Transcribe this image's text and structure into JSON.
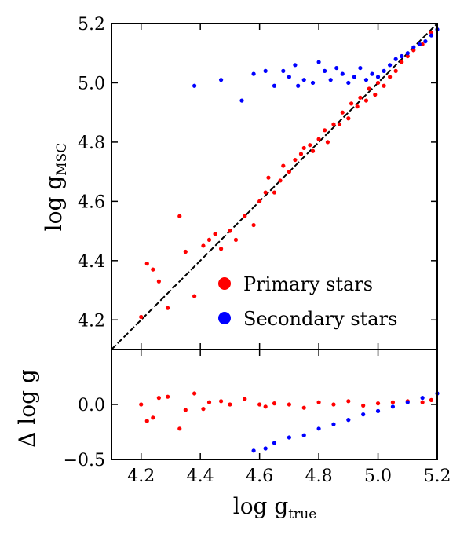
{
  "chart_data": [
    {
      "panel": "top",
      "type": "scatter",
      "xlabel": "",
      "ylabel": {
        "base": "log g",
        "subscript": "MSC"
      },
      "xlim": [
        4.1,
        5.2
      ],
      "ylim": [
        4.1,
        5.2
      ],
      "y_ticks": [
        "4.2",
        "4.4",
        "4.6",
        "4.8",
        "5.0",
        "5.2"
      ],
      "reference_line": {
        "style": "dashed",
        "color": "#000000",
        "description": "one-to-one line",
        "from": [
          4.1,
          4.1
        ],
        "to": [
          5.2,
          5.2
        ]
      },
      "legend": {
        "position": "lower-right",
        "entries": [
          {
            "label": "Primary stars",
            "color": "#ff0000"
          },
          {
            "label": "Secondary stars",
            "color": "#0000ff"
          }
        ]
      },
      "series": [
        {
          "name": "Primary stars",
          "color": "#ff0000",
          "points": [
            [
              4.2,
              4.21
            ],
            [
              4.22,
              4.39
            ],
            [
              4.24,
              4.37
            ],
            [
              4.26,
              4.33
            ],
            [
              4.29,
              4.24
            ],
            [
              4.33,
              4.55
            ],
            [
              4.35,
              4.43
            ],
            [
              4.38,
              4.28
            ],
            [
              4.41,
              4.45
            ],
            [
              4.43,
              4.47
            ],
            [
              4.45,
              4.49
            ],
            [
              4.47,
              4.44
            ],
            [
              4.5,
              4.5
            ],
            [
              4.52,
              4.47
            ],
            [
              4.55,
              4.55
            ],
            [
              4.58,
              4.52
            ],
            [
              4.6,
              4.6
            ],
            [
              4.62,
              4.63
            ],
            [
              4.63,
              4.68
            ],
            [
              4.65,
              4.63
            ],
            [
              4.67,
              4.67
            ],
            [
              4.68,
              4.72
            ],
            [
              4.7,
              4.7
            ],
            [
              4.72,
              4.74
            ],
            [
              4.74,
              4.76
            ],
            [
              4.75,
              4.78
            ],
            [
              4.77,
              4.79
            ],
            [
              4.78,
              4.77
            ],
            [
              4.8,
              4.81
            ],
            [
              4.82,
              4.84
            ],
            [
              4.83,
              4.8
            ],
            [
              4.85,
              4.86
            ],
            [
              4.87,
              4.86
            ],
            [
              4.88,
              4.9
            ],
            [
              4.9,
              4.88
            ],
            [
              4.91,
              4.93
            ],
            [
              4.93,
              4.92
            ],
            [
              4.94,
              4.95
            ],
            [
              4.96,
              4.94
            ],
            [
              4.97,
              4.98
            ],
            [
              4.99,
              4.96
            ],
            [
              5.0,
              5.0
            ],
            [
              5.02,
              4.99
            ],
            [
              5.04,
              5.02
            ],
            [
              5.06,
              5.04
            ],
            [
              5.08,
              5.07
            ],
            [
              5.1,
              5.09
            ],
            [
              5.12,
              5.11
            ],
            [
              5.15,
              5.13
            ],
            [
              5.18,
              5.17
            ]
          ]
        },
        {
          "name": "Secondary stars",
          "color": "#0000ff",
          "points": [
            [
              4.38,
              4.99
            ],
            [
              4.47,
              5.01
            ],
            [
              4.54,
              4.94
            ],
            [
              4.58,
              5.03
            ],
            [
              4.62,
              5.04
            ],
            [
              4.65,
              4.99
            ],
            [
              4.68,
              5.04
            ],
            [
              4.7,
              5.02
            ],
            [
              4.72,
              5.06
            ],
            [
              4.73,
              4.99
            ],
            [
              4.75,
              5.01
            ],
            [
              4.78,
              5.0
            ],
            [
              4.8,
              5.07
            ],
            [
              4.82,
              5.04
            ],
            [
              4.84,
              5.01
            ],
            [
              4.86,
              5.05
            ],
            [
              4.88,
              5.03
            ],
            [
              4.9,
              5.0
            ],
            [
              4.92,
              5.02
            ],
            [
              4.94,
              5.05
            ],
            [
              4.96,
              5.01
            ],
            [
              4.98,
              5.03
            ],
            [
              5.0,
              5.02
            ],
            [
              5.02,
              5.04
            ],
            [
              5.04,
              5.06
            ],
            [
              5.06,
              5.08
            ],
            [
              5.08,
              5.09
            ],
            [
              5.1,
              5.1
            ],
            [
              5.12,
              5.12
            ],
            [
              5.14,
              5.13
            ],
            [
              5.16,
              5.14
            ],
            [
              5.18,
              5.16
            ],
            [
              5.2,
              5.18
            ]
          ]
        }
      ]
    },
    {
      "panel": "bottom",
      "type": "scatter",
      "xlabel": {
        "base": "log g",
        "subscript": "true"
      },
      "ylabel": {
        "base": "Δ log g",
        "subscript": ""
      },
      "xlim": [
        4.1,
        5.2
      ],
      "ylim": [
        -0.5,
        0.5
      ],
      "x_ticks": [
        "4.2",
        "4.4",
        "4.6",
        "4.8",
        "5.0",
        "5.2"
      ],
      "y_ticks": [
        "−0.5",
        "0.0"
      ],
      "series": [
        {
          "name": "Primary stars",
          "color": "#ff0000",
          "points": [
            [
              4.2,
              0.0
            ],
            [
              4.22,
              -0.15
            ],
            [
              4.24,
              -0.12
            ],
            [
              4.26,
              0.06
            ],
            [
              4.29,
              0.07
            ],
            [
              4.33,
              -0.22
            ],
            [
              4.35,
              -0.05
            ],
            [
              4.38,
              0.1
            ],
            [
              4.41,
              -0.04
            ],
            [
              4.43,
              0.02
            ],
            [
              4.47,
              0.03
            ],
            [
              4.5,
              0.0
            ],
            [
              4.55,
              0.05
            ],
            [
              4.6,
              0.0
            ],
            [
              4.62,
              -0.02
            ],
            [
              4.65,
              0.01
            ],
            [
              4.7,
              0.0
            ],
            [
              4.75,
              -0.03
            ],
            [
              4.8,
              0.02
            ],
            [
              4.85,
              0.0
            ],
            [
              4.9,
              0.03
            ],
            [
              4.95,
              -0.01
            ],
            [
              5.0,
              0.01
            ],
            [
              5.05,
              0.02
            ],
            [
              5.1,
              0.03
            ],
            [
              5.15,
              0.02
            ],
            [
              5.18,
              0.04
            ]
          ]
        },
        {
          "name": "Secondary stars",
          "color": "#0000ff",
          "points": [
            [
              4.58,
              -0.42
            ],
            [
              4.62,
              -0.4
            ],
            [
              4.65,
              -0.35
            ],
            [
              4.7,
              -0.3
            ],
            [
              4.75,
              -0.28
            ],
            [
              4.8,
              -0.22
            ],
            [
              4.85,
              -0.18
            ],
            [
              4.9,
              -0.14
            ],
            [
              4.95,
              -0.09
            ],
            [
              5.0,
              -0.06
            ],
            [
              5.05,
              -0.02
            ],
            [
              5.1,
              0.02
            ],
            [
              5.15,
              0.06
            ],
            [
              5.2,
              0.1
            ]
          ]
        }
      ]
    }
  ]
}
